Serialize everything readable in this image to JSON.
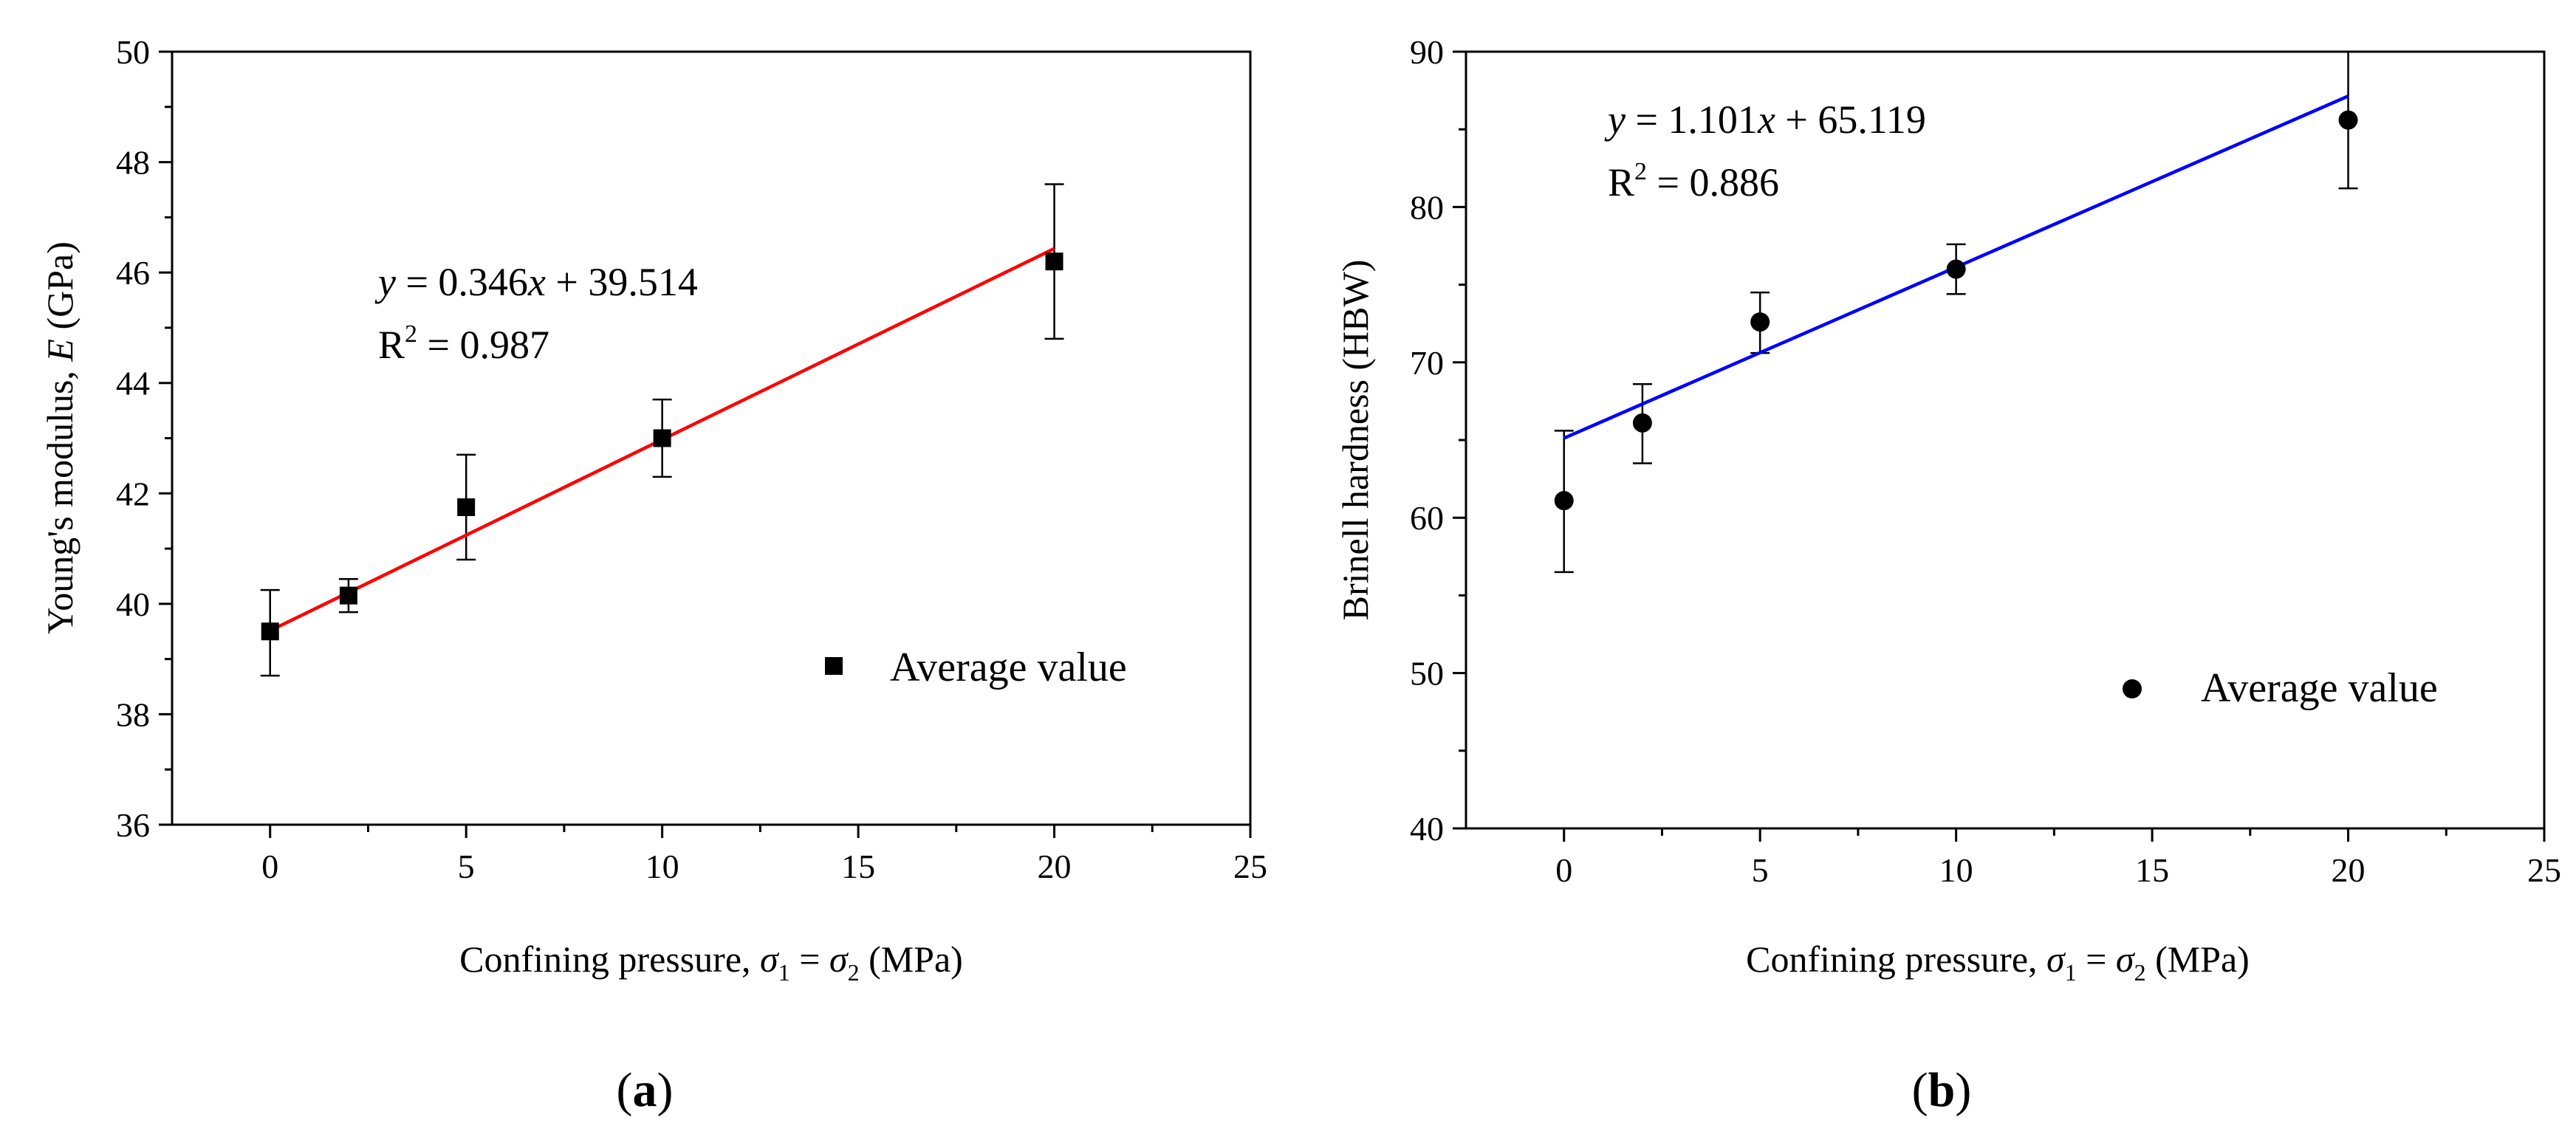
{
  "chart_data": [
    {
      "type": "scatter",
      "panel_label": "a",
      "xlabel": "Confining pressure, σ1 = σ2 (MPa)",
      "xlabel_parts": {
        "prefix": "Confining pressure, ",
        "sym": "σ",
        "sub1": "1",
        "eq": " = ",
        "sub2": "2",
        "suffix": " (MPa)"
      },
      "ylabel": "Young's modulus, E (GPa)",
      "ylabel_parts": {
        "prefix": "Young's modulus, ",
        "italic": "E",
        "suffix": " (GPa)"
      },
      "xlim": [
        -2.5,
        25
      ],
      "ylim": [
        36,
        50
      ],
      "x_ticks": [
        0,
        5,
        10,
        15,
        20,
        25
      ],
      "y_ticks": [
        36,
        38,
        40,
        42,
        44,
        46,
        48,
        50
      ],
      "x": [
        0,
        2,
        5,
        10,
        20
      ],
      "y": [
        39.5,
        40.15,
        41.75,
        43.0,
        46.2
      ],
      "err_low": [
        38.7,
        39.85,
        40.8,
        42.3,
        44.8
      ],
      "err_high": [
        40.25,
        40.45,
        42.7,
        43.7,
        47.6
      ],
      "fit": {
        "slope": 0.346,
        "intercept": 39.514,
        "x_range": [
          0,
          20
        ],
        "color": "#ff0000"
      },
      "equation": {
        "y": "y",
        "eq_text": " = 0.346",
        "x": "x",
        "rest": " + 39.514"
      },
      "r2": {
        "label": "R",
        "sup": "2",
        "value": " = 0.987"
      },
      "marker": "square",
      "legend": {
        "label": "Average value",
        "position": "lower-right"
      }
    },
    {
      "type": "scatter",
      "panel_label": "b",
      "xlabel": "Confining pressure, σ1 = σ2 (MPa)",
      "xlabel_parts": {
        "prefix": "Confining pressure, ",
        "sym": "σ",
        "sub1": "1",
        "eq": " = ",
        "sub2": "2",
        "suffix": " (MPa)"
      },
      "ylabel": "Brinell hardness (HBW)",
      "xlim": [
        -2.5,
        25
      ],
      "ylim": [
        40,
        90
      ],
      "x_ticks": [
        0,
        5,
        10,
        15,
        20,
        25
      ],
      "y_ticks": [
        40,
        50,
        60,
        70,
        80,
        90
      ],
      "x": [
        0,
        2,
        5,
        10,
        20
      ],
      "y": [
        61.1,
        66.1,
        72.6,
        76.0,
        85.6
      ],
      "err_low": [
        56.5,
        63.5,
        70.6,
        74.4,
        81.2
      ],
      "err_high": [
        65.6,
        68.6,
        74.5,
        77.6,
        90.0
      ],
      "fit": {
        "slope": 1.101,
        "intercept": 65.119,
        "x_range": [
          0,
          20
        ],
        "color": "#0000ff"
      },
      "equation": {
        "y": "y",
        "eq_text": " = 1.101",
        "x": "x",
        "rest": " + 65.119"
      },
      "r2": {
        "label": "R",
        "sup": "2",
        "value": " = 0.886"
      },
      "marker": "circle",
      "legend": {
        "label": "Average value",
        "position": "lower-right"
      }
    }
  ]
}
